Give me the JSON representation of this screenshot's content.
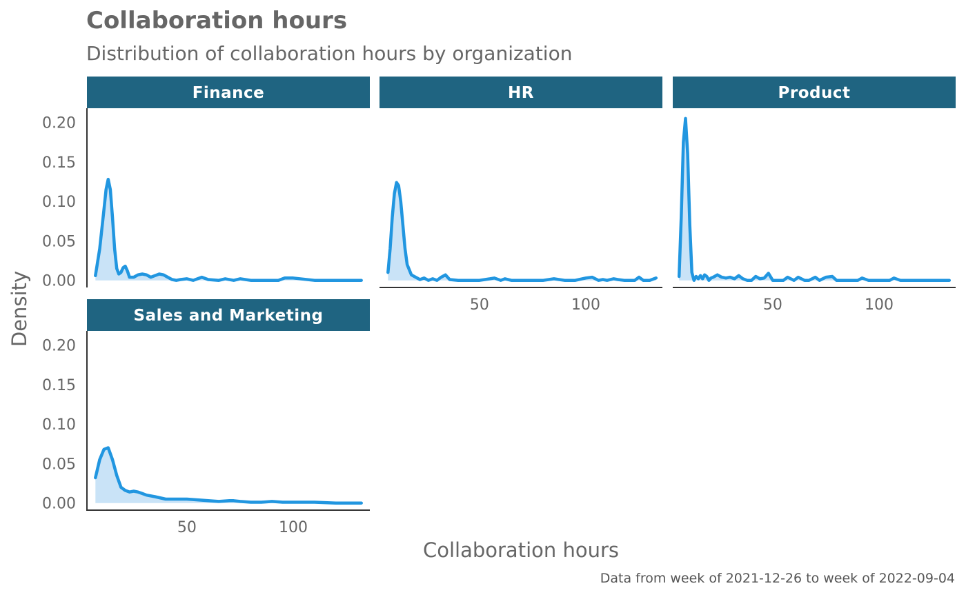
{
  "chart_data": {
    "type": "area",
    "title": "Collaboration hours",
    "subtitle": "Distribution of collaboration hours by organization",
    "xlabel": "Collaboration hours",
    "ylabel": "Density",
    "caption": "Data from week of 2021-12-26 to week of 2022-09-04",
    "xlim": [
      3,
      136
    ],
    "ylim": [
      -0.009,
      0.218
    ],
    "x_ticks": [
      50,
      100
    ],
    "y_ticks": [
      0.0,
      0.05,
      0.1,
      0.15,
      0.2
    ],
    "y_tick_labels": [
      "0.00",
      "0.05",
      "0.10",
      "0.15",
      "0.20"
    ],
    "grid": false,
    "colors": {
      "line": "#2196e0",
      "fill": "#c9e3f7",
      "strip": "#1f6481",
      "axis": "#333333"
    },
    "series": [
      {
        "name": "Finance",
        "x": [
          7,
          9,
          11,
          12,
          13,
          14,
          15,
          16,
          17,
          18,
          19,
          20,
          21,
          22,
          23,
          25,
          27,
          29,
          31,
          33,
          35,
          37,
          39,
          41,
          43,
          45,
          47,
          50,
          53,
          55,
          57,
          60,
          65,
          68,
          72,
          75,
          80,
          85,
          90,
          93,
          96,
          100,
          110,
          120,
          132
        ],
        "y": [
          0.006,
          0.04,
          0.09,
          0.115,
          0.128,
          0.115,
          0.08,
          0.04,
          0.015,
          0.008,
          0.01,
          0.016,
          0.018,
          0.012,
          0.004,
          0.004,
          0.007,
          0.008,
          0.007,
          0.004,
          0.006,
          0.008,
          0.007,
          0.004,
          0.001,
          0.0,
          0.001,
          0.002,
          0.0,
          0.002,
          0.004,
          0.001,
          0.0,
          0.002,
          0.0,
          0.002,
          0.0,
          0.0,
          0.0,
          0.0,
          0.003,
          0.003,
          0.0,
          0.0,
          0.0
        ]
      },
      {
        "name": "HR",
        "x": [
          7,
          8,
          9,
          10,
          11,
          12,
          13,
          14,
          15,
          16,
          18,
          20,
          22,
          24,
          26,
          28,
          30,
          32,
          34,
          36,
          40,
          45,
          50,
          55,
          57,
          60,
          62,
          65,
          70,
          75,
          80,
          85,
          90,
          95,
          100,
          103,
          106,
          108,
          110,
          113,
          115,
          118,
          120,
          123,
          125,
          127,
          130,
          133
        ],
        "y": [
          0.01,
          0.04,
          0.08,
          0.11,
          0.124,
          0.12,
          0.1,
          0.07,
          0.04,
          0.02,
          0.007,
          0.004,
          0.001,
          0.003,
          0.0,
          0.002,
          0.0,
          0.004,
          0.007,
          0.001,
          0.0,
          0.0,
          0.0,
          0.002,
          0.003,
          0.0,
          0.002,
          0.0,
          0.0,
          0.0,
          0.0,
          0.002,
          0.0,
          0.0,
          0.003,
          0.004,
          0.0,
          0.001,
          0.0,
          0.002,
          0.001,
          0.0,
          0.0,
          0.0,
          0.004,
          0.0,
          0.0,
          0.003
        ]
      },
      {
        "name": "Product",
        "x": [
          6,
          7,
          8,
          9,
          10,
          11,
          12,
          13,
          14,
          15,
          16,
          17,
          18,
          19,
          20,
          21,
          22,
          24,
          26,
          28,
          30,
          32,
          34,
          36,
          38,
          40,
          42,
          44,
          46,
          48,
          50,
          53,
          55,
          57,
          60,
          62,
          65,
          67,
          70,
          72,
          75,
          78,
          80,
          85,
          90,
          92,
          95,
          100,
          105,
          107,
          110,
          120,
          133
        ],
        "y": [
          0.005,
          0.08,
          0.175,
          0.205,
          0.16,
          0.07,
          0.01,
          0.0,
          0.005,
          0.002,
          0.006,
          0.002,
          0.007,
          0.005,
          0.0,
          0.003,
          0.004,
          0.007,
          0.004,
          0.003,
          0.004,
          0.002,
          0.006,
          0.002,
          0.0,
          0.0,
          0.005,
          0.002,
          0.003,
          0.009,
          0.0,
          0.0,
          0.0,
          0.004,
          0.0,
          0.004,
          0.0,
          0.0,
          0.004,
          0.0,
          0.004,
          0.005,
          0.0,
          0.0,
          0.0,
          0.003,
          0.0,
          0.0,
          0.0,
          0.003,
          0.0,
          0.0,
          0.0
        ]
      },
      {
        "name": "Sales and Marketing",
        "x": [
          7,
          9,
          11,
          13,
          15,
          17,
          19,
          21,
          23,
          25,
          27,
          29,
          31,
          35,
          40,
          45,
          50,
          55,
          60,
          65,
          70,
          72,
          75,
          80,
          85,
          90,
          95,
          100,
          110,
          120,
          132
        ],
        "y": [
          0.032,
          0.055,
          0.068,
          0.07,
          0.055,
          0.035,
          0.02,
          0.016,
          0.014,
          0.015,
          0.014,
          0.012,
          0.01,
          0.008,
          0.005,
          0.005,
          0.005,
          0.004,
          0.003,
          0.002,
          0.003,
          0.003,
          0.002,
          0.001,
          0.001,
          0.002,
          0.001,
          0.001,
          0.001,
          0.0,
          0.0
        ]
      }
    ]
  }
}
